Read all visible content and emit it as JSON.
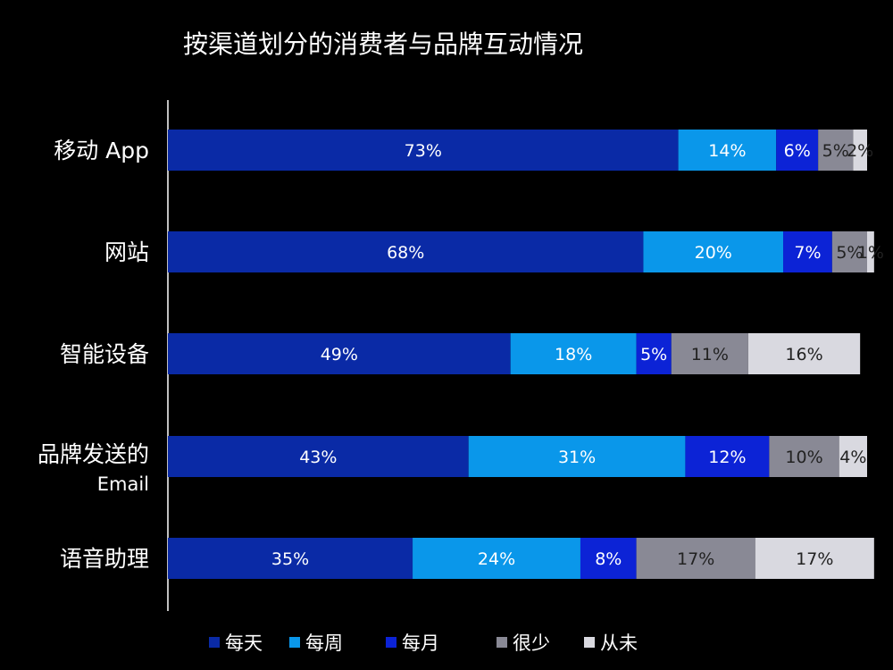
{
  "chart_data": {
    "type": "bar",
    "orientation": "horizontal",
    "stacked": true,
    "title": "按渠道划分的消费者与品牌互动情况",
    "categories": [
      "移动 App",
      "网站",
      "智能设备",
      "品牌发送的 Email",
      "语音助理"
    ],
    "category_lines": [
      [
        "移动 App"
      ],
      [
        "网站"
      ],
      [
        "智能设备"
      ],
      [
        "品牌发送的",
        "Email"
      ],
      [
        "语音助理"
      ]
    ],
    "series": [
      {
        "name": "每天",
        "color": "#0a2aa6",
        "values": [
          73,
          68,
          49,
          43,
          35
        ],
        "labels": [
          "73%",
          "68%",
          "49%",
          "43%",
          "35%"
        ]
      },
      {
        "name": "每周",
        "color": "#0a97ea",
        "values": [
          14,
          20,
          18,
          31,
          24
        ],
        "labels": [
          "14%",
          "20%",
          "18%",
          "31%",
          "24%"
        ]
      },
      {
        "name": "每月",
        "color": "#0c23d6",
        "values": [
          6,
          7,
          5,
          12,
          8
        ],
        "labels": [
          "6%",
          "7%",
          "5%",
          "12%",
          "8%"
        ]
      },
      {
        "name": "很少",
        "color": "#898995",
        "values": [
          5,
          5,
          11,
          10,
          17
        ],
        "labels": [
          "5%",
          "5%",
          "11%",
          "10%",
          "17%"
        ]
      },
      {
        "name": "从未",
        "color": "#d9d9e0",
        "values": [
          2,
          1,
          16,
          4,
          17
        ],
        "labels": [
          "2%",
          "1%",
          "16%",
          "4%",
          "17%"
        ]
      }
    ],
    "legend_position": "bottom",
    "grid": false
  }
}
